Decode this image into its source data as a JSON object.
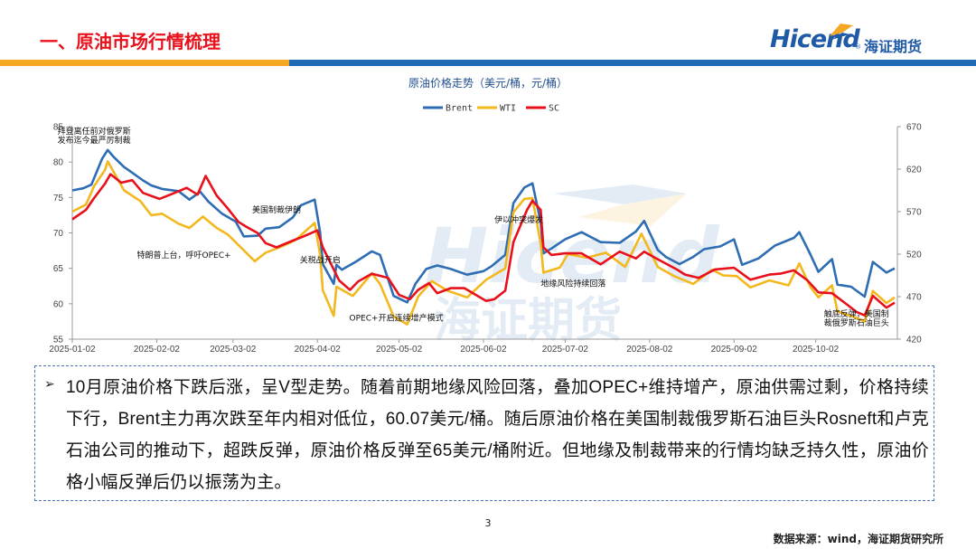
{
  "slide": {
    "title": "一、原油市场行情梳理",
    "logo_text": "Hicend",
    "logo_reg": "®",
    "logo_cn": "海证期货",
    "watermark_text": "Hicend",
    "watermark_cn": "海证期货",
    "page_number": "3",
    "source": "数据来源：wind，海证期货研究所",
    "colors": {
      "title_red": "#e8101b",
      "brand_blue": "#1f5aa6",
      "band_orange": "#f5a623",
      "band_blue": "#1f6bb6"
    }
  },
  "text_box": {
    "bullet_icon": "arrow-bullet-icon",
    "paragraph": "10月原油价格下跌后涨，呈V型走势。随着前期地缘风险回落，叠加OPEC+维持增产，原油供需过剩，价格持续下行，Brent主力再次跌至年内相对低位，60.07美元/桶。随后原油价格在美国制裁俄罗斯石油巨头Rosneft和卢克石油公司的推动下，超跌反弹，原油价格反弹至65美元/桶附近。但地缘及制裁带来的行情均缺乏持久性，原油价格小幅反弹后仍以振荡为主。"
  },
  "chart_data": {
    "type": "line",
    "title": "原油价格走势（美元/桶，元/桶）",
    "x_ticks": [
      "2025-01-02",
      "2025-02-02",
      "2025-03-02",
      "2025-04-02",
      "2025-05-02",
      "2025-06-02",
      "2025-07-02",
      "2025-08-02",
      "2025-09-02",
      "2025-10-02"
    ],
    "y_left": {
      "min": 55,
      "max": 85,
      "ticks": [
        55,
        60,
        65,
        70,
        75,
        80,
        85
      ]
    },
    "y_right": {
      "min": 420,
      "max": 670,
      "ticks": [
        420,
        470,
        520,
        570,
        620,
        670
      ]
    },
    "grid": false,
    "legend_position": "top",
    "series": [
      {
        "name": "Brent",
        "axis": "left",
        "color": "#2e6db4",
        "points": [
          [
            "2025-01-02",
            76
          ],
          [
            "2025-01-06",
            76.3
          ],
          [
            "2025-01-09",
            76.8
          ],
          [
            "2025-01-13",
            80.5
          ],
          [
            "2025-01-15",
            81.7
          ],
          [
            "2025-01-17",
            80.8
          ],
          [
            "2025-01-21",
            79.3
          ],
          [
            "2025-01-24",
            78.5
          ],
          [
            "2025-01-28",
            77.4
          ],
          [
            "2025-01-31",
            76.7
          ],
          [
            "2025-02-04",
            76.2
          ],
          [
            "2025-02-10",
            75.9
          ],
          [
            "2025-02-14",
            74.7
          ],
          [
            "2025-02-18",
            75.8
          ],
          [
            "2025-02-21",
            74.4
          ],
          [
            "2025-02-26",
            72.7
          ],
          [
            "2025-03-03",
            71.6
          ],
          [
            "2025-03-06",
            69.5
          ],
          [
            "2025-03-11",
            69.6
          ],
          [
            "2025-03-14",
            70.6
          ],
          [
            "2025-03-19",
            70.8
          ],
          [
            "2025-03-24",
            72.2
          ],
          [
            "2025-03-27",
            73.9
          ],
          [
            "2025-04-01",
            74.7
          ],
          [
            "2025-04-03",
            70.1
          ],
          [
            "2025-04-04",
            65.6
          ],
          [
            "2025-04-08",
            62.8
          ],
          [
            "2025-04-09",
            65.5
          ],
          [
            "2025-04-11",
            64.8
          ],
          [
            "2025-04-16",
            65.9
          ],
          [
            "2025-04-22",
            67.4
          ],
          [
            "2025-04-25",
            66.9
          ],
          [
            "2025-04-30",
            61.1
          ],
          [
            "2025-05-05",
            60.2
          ],
          [
            "2025-05-08",
            62.8
          ],
          [
            "2025-05-12",
            64.9
          ],
          [
            "2025-05-16",
            65.4
          ],
          [
            "2025-05-21",
            64.9
          ],
          [
            "2025-05-27",
            64.1
          ],
          [
            "2025-06-02",
            64.6
          ],
          [
            "2025-06-05",
            65.3
          ],
          [
            "2025-06-10",
            66.9
          ],
          [
            "2025-06-13",
            74.2
          ],
          [
            "2025-06-17",
            76.4
          ],
          [
            "2025-06-20",
            77
          ],
          [
            "2025-06-23",
            71.5
          ],
          [
            "2025-06-24",
            67.1
          ],
          [
            "2025-06-27",
            67.8
          ],
          [
            "2025-07-02",
            69.1
          ],
          [
            "2025-07-08",
            70.1
          ],
          [
            "2025-07-15",
            68.7
          ],
          [
            "2025-07-22",
            68.6
          ],
          [
            "2025-07-28",
            70.2
          ],
          [
            "2025-07-31",
            71.7
          ],
          [
            "2025-08-05",
            67.6
          ],
          [
            "2025-08-08",
            66.6
          ],
          [
            "2025-08-13",
            65.6
          ],
          [
            "2025-08-18",
            66.6
          ],
          [
            "2025-08-22",
            67.7
          ],
          [
            "2025-08-28",
            68.1
          ],
          [
            "2025-09-02",
            69.1
          ],
          [
            "2025-09-05",
            65.5
          ],
          [
            "2025-09-11",
            66.4
          ],
          [
            "2025-09-17",
            68.2
          ],
          [
            "2025-09-24",
            69.3
          ],
          [
            "2025-09-26",
            70.1
          ],
          [
            "2025-09-30",
            67
          ],
          [
            "2025-10-03",
            64.5
          ],
          [
            "2025-10-08",
            66.3
          ],
          [
            "2025-10-10",
            62.7
          ],
          [
            "2025-10-15",
            62.4
          ],
          [
            "2025-10-20",
            61
          ],
          [
            "2025-10-23",
            65.9
          ],
          [
            "2025-10-28",
            64.4
          ],
          [
            "2025-10-31",
            65
          ]
        ]
      },
      {
        "name": "WTI",
        "axis": "left",
        "color": "#f2b81e",
        "points": [
          [
            "2025-01-02",
            73
          ],
          [
            "2025-01-07",
            74
          ],
          [
            "2025-01-10",
            76.6
          ],
          [
            "2025-01-14",
            78.9
          ],
          [
            "2025-01-15",
            80.1
          ],
          [
            "2025-01-21",
            76
          ],
          [
            "2025-01-27",
            74.5
          ],
          [
            "2025-01-31",
            72.5
          ],
          [
            "2025-02-04",
            72.7
          ],
          [
            "2025-02-10",
            71.3
          ],
          [
            "2025-02-14",
            70.7
          ],
          [
            "2025-02-19",
            72.3
          ],
          [
            "2025-02-24",
            70.7
          ],
          [
            "2025-02-28",
            69.8
          ],
          [
            "2025-03-04",
            68.3
          ],
          [
            "2025-03-10",
            66
          ],
          [
            "2025-03-14",
            67.2
          ],
          [
            "2025-03-20",
            68.1
          ],
          [
            "2025-03-25",
            69
          ],
          [
            "2025-04-01",
            71.4
          ],
          [
            "2025-04-03",
            66.9
          ],
          [
            "2025-04-04",
            61.9
          ],
          [
            "2025-04-08",
            58.3
          ],
          [
            "2025-04-09",
            62.4
          ],
          [
            "2025-04-15",
            61.1
          ],
          [
            "2025-04-22",
            64.3
          ],
          [
            "2025-04-25",
            62.8
          ],
          [
            "2025-04-30",
            58.2
          ],
          [
            "2025-05-05",
            57.1
          ],
          [
            "2025-05-09",
            61
          ],
          [
            "2025-05-14",
            63.2
          ],
          [
            "2025-05-20",
            61.8
          ],
          [
            "2025-05-27",
            60.9
          ],
          [
            "2025-06-03",
            63.4
          ],
          [
            "2025-06-10",
            65
          ],
          [
            "2025-06-13",
            72.9
          ],
          [
            "2025-06-17",
            74.8
          ],
          [
            "2025-06-20",
            74.9
          ],
          [
            "2025-06-23",
            68.5
          ],
          [
            "2025-06-24",
            64.4
          ],
          [
            "2025-06-30",
            65.1
          ],
          [
            "2025-07-03",
            67
          ],
          [
            "2025-07-10",
            66.5
          ],
          [
            "2025-07-17",
            67.2
          ],
          [
            "2025-07-24",
            65.2
          ],
          [
            "2025-07-30",
            69.9
          ],
          [
            "2025-08-05",
            65.2
          ],
          [
            "2025-08-11",
            63.9
          ],
          [
            "2025-08-18",
            62.8
          ],
          [
            "2025-08-25",
            64.8
          ],
          [
            "2025-08-29",
            64
          ],
          [
            "2025-09-03",
            63.9
          ],
          [
            "2025-09-08",
            62.3
          ],
          [
            "2025-09-15",
            63.3
          ],
          [
            "2025-09-22",
            62.6
          ],
          [
            "2025-09-26",
            65.7
          ],
          [
            "2025-09-30",
            62.4
          ],
          [
            "2025-10-03",
            60.9
          ],
          [
            "2025-10-08",
            62.6
          ],
          [
            "2025-10-10",
            58.9
          ],
          [
            "2025-10-15",
            58.3
          ],
          [
            "2025-10-20",
            57.5
          ],
          [
            "2025-10-23",
            61.8
          ],
          [
            "2025-10-28",
            60.1
          ],
          [
            "2025-10-31",
            60.9
          ]
        ]
      },
      {
        "name": "SC",
        "axis": "right",
        "color": "#e8101b",
        "points": [
          [
            "2025-01-02",
            561
          ],
          [
            "2025-01-07",
            572
          ],
          [
            "2025-01-10",
            586
          ],
          [
            "2025-01-14",
            603
          ],
          [
            "2025-01-16",
            614
          ],
          [
            "2025-01-20",
            604
          ],
          [
            "2025-01-24",
            607
          ],
          [
            "2025-01-28",
            592
          ],
          [
            "2025-02-03",
            585
          ],
          [
            "2025-02-07",
            590
          ],
          [
            "2025-02-13",
            598
          ],
          [
            "2025-02-17",
            590
          ],
          [
            "2025-02-20",
            612
          ],
          [
            "2025-02-24",
            589
          ],
          [
            "2025-02-28",
            574
          ],
          [
            "2025-03-04",
            558
          ],
          [
            "2025-03-07",
            552
          ],
          [
            "2025-03-11",
            545
          ],
          [
            "2025-03-14",
            533
          ],
          [
            "2025-03-18",
            528
          ],
          [
            "2025-03-24",
            536
          ],
          [
            "2025-03-28",
            541
          ],
          [
            "2025-04-02",
            548
          ],
          [
            "2025-04-04",
            528
          ],
          [
            "2025-04-08",
            502
          ],
          [
            "2025-04-10",
            489
          ],
          [
            "2025-04-14",
            478
          ],
          [
            "2025-04-17",
            488
          ],
          [
            "2025-04-22",
            497
          ],
          [
            "2025-04-28",
            492
          ],
          [
            "2025-05-02",
            472
          ],
          [
            "2025-05-06",
            467
          ],
          [
            "2025-05-09",
            478
          ],
          [
            "2025-05-13",
            486
          ],
          [
            "2025-05-16",
            474
          ],
          [
            "2025-05-21",
            480
          ],
          [
            "2025-05-26",
            480
          ],
          [
            "2025-06-03",
            465
          ],
          [
            "2025-06-06",
            467
          ],
          [
            "2025-06-10",
            477
          ],
          [
            "2025-06-13",
            534
          ],
          [
            "2025-06-18",
            572
          ],
          [
            "2025-06-20",
            583
          ],
          [
            "2025-06-23",
            572
          ],
          [
            "2025-06-24",
            528
          ],
          [
            "2025-06-27",
            519
          ],
          [
            "2025-07-02",
            521
          ],
          [
            "2025-07-08",
            521
          ],
          [
            "2025-07-15",
            508
          ],
          [
            "2025-07-22",
            523
          ],
          [
            "2025-07-28",
            515
          ],
          [
            "2025-07-31",
            523
          ],
          [
            "2025-08-05",
            514
          ],
          [
            "2025-08-12",
            502
          ],
          [
            "2025-08-15",
            496
          ],
          [
            "2025-08-20",
            492
          ],
          [
            "2025-08-26",
            502
          ],
          [
            "2025-09-02",
            504
          ],
          [
            "2025-09-08",
            490
          ],
          [
            "2025-09-15",
            496
          ],
          [
            "2025-09-19",
            497
          ],
          [
            "2025-09-24",
            501
          ],
          [
            "2025-09-29",
            489
          ],
          [
            "2025-10-03",
            475
          ],
          [
            "2025-10-08",
            474
          ],
          [
            "2025-10-13",
            462
          ],
          [
            "2025-10-17",
            452
          ],
          [
            "2025-10-20",
            448
          ],
          [
            "2025-10-23",
            471
          ],
          [
            "2025-10-28",
            457
          ],
          [
            "2025-10-31",
            463
          ]
        ]
      }
    ],
    "annotations": [
      {
        "text": "拜登离任前对俄罗斯",
        "date": "2025-01-10",
        "value": 84,
        "anchor": "middle"
      },
      {
        "text": "发布迄今最严厉制裁",
        "date": "2025-01-10",
        "value": 82.7,
        "anchor": "middle"
      },
      {
        "text": "特朗普上台，呼吁OPEC+",
        "date": "2025-02-12",
        "value": 66.5,
        "anchor": "middle"
      },
      {
        "text": "美国制裁伊朗",
        "date": "2025-03-18",
        "value": 72.9,
        "anchor": "middle"
      },
      {
        "text": "关税战开启",
        "date": "2025-04-03",
        "value": 65.8,
        "anchor": "middle"
      },
      {
        "text": "OPEC+开启连续增产模式",
        "date": "2025-05-01",
        "value": 57.6,
        "anchor": "middle"
      },
      {
        "text": "伊以冲突爆发",
        "date": "2025-06-15",
        "value": 71.5,
        "anchor": "middle"
      },
      {
        "text": "地缘风险持续回落",
        "date": "2025-07-05",
        "value": 62.5,
        "anchor": "middle"
      },
      {
        "text": "触底反弹，美国制",
        "date": "2025-10-17",
        "value": 58.2,
        "anchor": "middle"
      },
      {
        "text": "裁俄罗斯石油巨头",
        "date": "2025-10-17",
        "value": 56.9,
        "anchor": "middle"
      }
    ]
  }
}
